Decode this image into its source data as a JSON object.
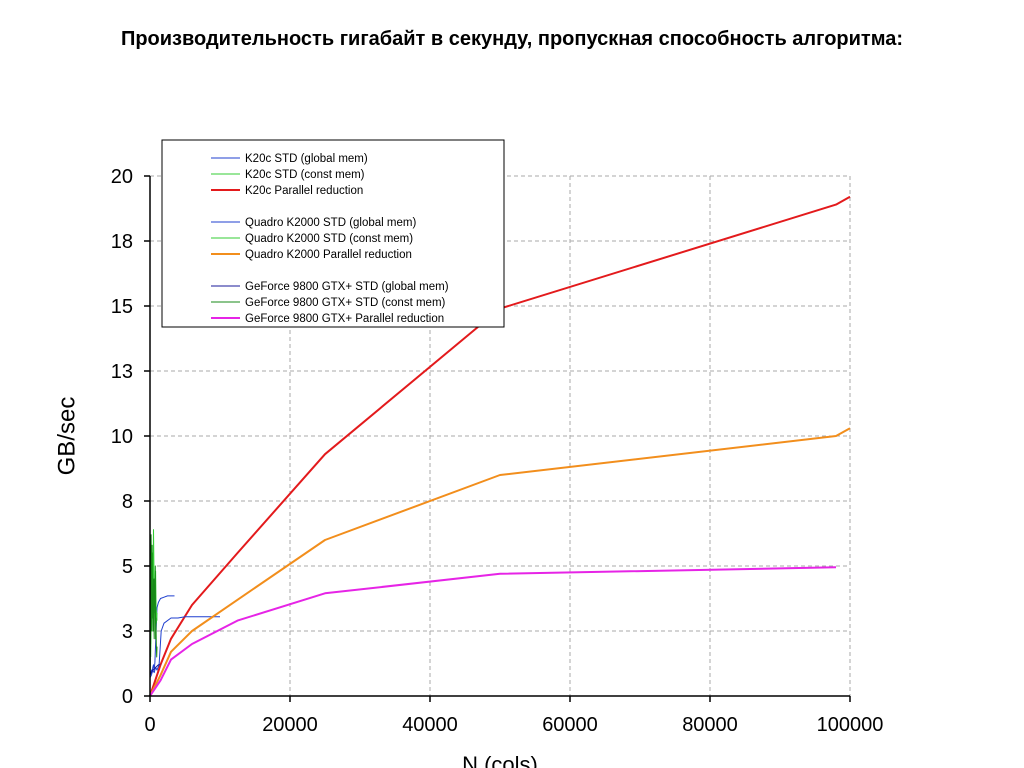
{
  "page": {
    "title": "Производительность гигабайт в секунду, пропускная способность алгоритма:"
  },
  "chart_data": {
    "type": "line",
    "title": "",
    "xlabel": "N (cols)",
    "ylabel": "GB/sec",
    "xlim": [
      0,
      100000
    ],
    "ylim": [
      0,
      20
    ],
    "x_ticks": [
      0,
      20000,
      40000,
      60000,
      80000,
      100000
    ],
    "y_ticks": [
      0,
      2.5,
      5,
      7.5,
      10,
      12.5,
      15,
      17.5,
      20
    ],
    "y_tick_labels": [
      "0",
      "3",
      "5",
      "8",
      "10",
      "13",
      "15",
      "18",
      "20"
    ],
    "grid": true,
    "legend_position": "top-left",
    "legend_groups": [
      [
        "K20c STD (global mem)",
        "K20c STD (const mem)",
        "K20c   Parallel reduction"
      ],
      [
        "Quadro K2000 STD (global mem)",
        "Quadro K2000 STD (const mem)",
        "Quadro K2000  Parallel reduction"
      ],
      [
        "GeForce 9800 GTX+ STD (global mem)",
        "GeForce 9800 GTX+ STD (const mem)",
        "GeForce 9800 GTX+  Parallel reduction"
      ]
    ],
    "series": [
      {
        "name": "K20c STD (global mem)",
        "color": "#1f3fcf",
        "width": 1,
        "legend_width": 1,
        "x": [
          0,
          100,
          200,
          300,
          400,
          500,
          600,
          700,
          800,
          1000,
          1200,
          1500,
          2000,
          2500,
          3000,
          3500
        ],
        "y": [
          0.8,
          0.9,
          1.0,
          0.9,
          1.1,
          1.2,
          1.0,
          1.3,
          2.0,
          3.4,
          3.6,
          3.75,
          3.8,
          3.85,
          3.85,
          3.85
        ]
      },
      {
        "name": "K20c STD (const mem)",
        "color": "#33cc33",
        "width": 1,
        "legend_width": 1,
        "x": [
          100,
          200,
          300,
          400,
          500,
          600,
          700,
          800,
          900,
          1000
        ],
        "y": [
          1.5,
          3.5,
          5.0,
          3.0,
          6.4,
          4.0,
          3.2,
          4.8,
          2.8,
          3.2
        ]
      },
      {
        "name": "K20c   Parallel reduction",
        "color": "#e31a1c",
        "width": 2,
        "legend_width": 2,
        "x": [
          0,
          1500,
          3000,
          6000,
          12500,
          25000,
          50000,
          98000,
          100000
        ],
        "y": [
          0,
          1.2,
          2.2,
          3.5,
          5.5,
          9.3,
          14.9,
          18.9,
          19.2
        ]
      },
      {
        "name": "Quadro K2000 STD (global mem)",
        "color": "#1f3fcf",
        "width": 1,
        "legend_width": 1,
        "x": [
          0,
          200,
          400,
          600,
          800,
          1000,
          1300,
          1600,
          2000,
          3000,
          4000,
          5000,
          6000,
          7000,
          8000,
          9000,
          10000
        ],
        "y": [
          0.7,
          0.8,
          1.0,
          0.9,
          1.1,
          1.0,
          1.2,
          2.5,
          2.8,
          3.0,
          3.0,
          3.05,
          3.05,
          3.05,
          3.05,
          3.05,
          3.05
        ]
      },
      {
        "name": "Quadro K2000 STD (const mem)",
        "color": "#33cc33",
        "width": 1,
        "legend_width": 1,
        "x": [
          100,
          200,
          300,
          400,
          500,
          600,
          700,
          800,
          900,
          1000
        ],
        "y": [
          2.0,
          4.0,
          3.0,
          5.5,
          2.5,
          4.5,
          3.5,
          2.8,
          3.3,
          2.9
        ]
      },
      {
        "name": "Quadro K2000  Parallel reduction",
        "color": "#f28e1c",
        "width": 2,
        "legend_width": 2,
        "x": [
          0,
          1500,
          3000,
          6000,
          12500,
          25000,
          50000,
          98000,
          100000
        ],
        "y": [
          0,
          0.8,
          1.7,
          2.5,
          3.7,
          6.0,
          8.5,
          10.0,
          10.3
        ]
      },
      {
        "name": "GeForce 9800 GTX+ STD (global mem)",
        "color": "#1a1a99",
        "width": 1,
        "legend_width": 1,
        "x": [
          0,
          200,
          400,
          600,
          800,
          1000,
          1200,
          1500
        ],
        "y": [
          0.8,
          0.9,
          1.0,
          1.05,
          1.1,
          1.15,
          1.2,
          1.2
        ]
      },
      {
        "name": "GeForce 9800 GTX+ STD (const mem)",
        "color": "#178a17",
        "width": 1,
        "legend_width": 1,
        "x": [
          50,
          100,
          150,
          200,
          250,
          300,
          350,
          400,
          450,
          500,
          550,
          600,
          650,
          700,
          750,
          800,
          850,
          900,
          950,
          1000
        ],
        "y": [
          1.0,
          3.0,
          6.2,
          5.0,
          2.5,
          5.8,
          4.0,
          3.5,
          2.5,
          4.5,
          3.0,
          2.2,
          4.5,
          3.5,
          5.0,
          2.2,
          3.0,
          2.0,
          1.5,
          1.9
        ]
      },
      {
        "name": "GeForce 9800 GTX+  Parallel reduction",
        "color": "#e624e6",
        "width": 2,
        "legend_width": 2,
        "x": [
          0,
          1500,
          3000,
          6000,
          12500,
          25000,
          50000,
          98000
        ],
        "y": [
          0,
          0.6,
          1.4,
          2.0,
          2.9,
          3.95,
          4.7,
          4.95
        ]
      }
    ]
  }
}
